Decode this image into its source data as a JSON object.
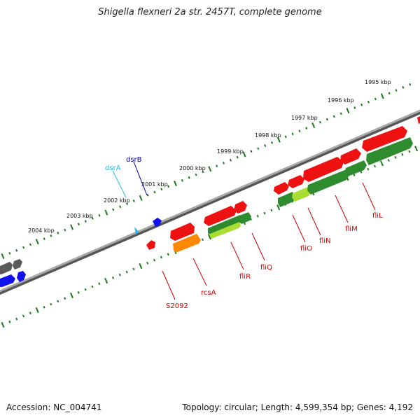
{
  "title": "Shigella flexneri 2a str. 2457T, complete genome",
  "footer": {
    "accession": "Accession: NC_004741",
    "topology": "Topology: circular; Length: 4,599,354 bp; Genes: 4,192"
  },
  "colors": {
    "backbone": "#8c8c8c",
    "ruler": "#1a7a1a",
    "gene_red": "#ee1111",
    "gene_green": "#2e8b2e",
    "gene_lightgreen": "#aadd33",
    "gene_orange": "#ff8800",
    "gene_blue": "#1111ee",
    "gene_cyan": "#22bbee",
    "gene_gray": "#666666",
    "label_red": "#cc0000",
    "label_blue": "#0000aa",
    "label_cyan": "#22bbee"
  },
  "kbp_labels": [
    "2004 kbp",
    "2003 kbp",
    "2002 kbp",
    "2001 kbp",
    "2000 kbp",
    "1999 kbp",
    "1998 kbp",
    "1997 kbp",
    "1996 kbp",
    "1995 kbp"
  ],
  "gene_labels": {
    "dsrA": "dsrA",
    "dsrB": "dsrB",
    "S2092": "S2092",
    "rcsA": "rcsA",
    "fliR": "fliR",
    "fliQ": "fliQ",
    "fliO": "fliO",
    "fliN": "fliN",
    "fliM": "fliM",
    "fliL": "fliL"
  }
}
